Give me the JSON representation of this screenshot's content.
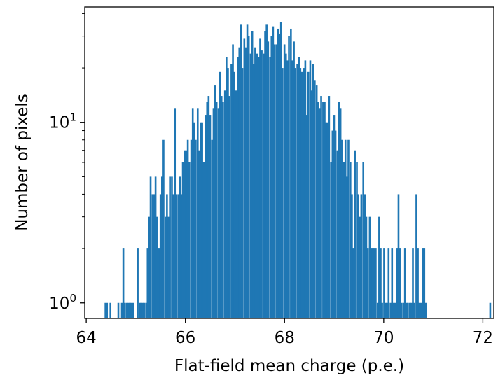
{
  "chart_data": {
    "type": "bar",
    "xlabel": "Flat-field mean charge (p.e.)",
    "ylabel": "Number of pixels",
    "xlim": [
      63.97,
      72.22
    ],
    "ylim": [
      0.82,
      43.5
    ],
    "yscale": "log",
    "grid": false,
    "color": "#1f77b4",
    "x_ticks": [
      64,
      66,
      68,
      70,
      72
    ],
    "x_tick_labels": [
      "64",
      "66",
      "68",
      "70",
      "72"
    ],
    "y_major_ticks": [
      1,
      10
    ],
    "y_tick_labels": [
      {
        "base": "10",
        "exp": "0"
      },
      {
        "base": "10",
        "exp": "1"
      }
    ],
    "y_minor_ticks": [
      2,
      3,
      4,
      5,
      6,
      7,
      8,
      9,
      20,
      30,
      40
    ],
    "bin_width": 0.0325,
    "bins": [
      [
        64.37,
        1
      ],
      [
        64.4,
        1
      ],
      [
        64.47,
        1
      ],
      [
        64.63,
        1
      ],
      [
        64.7,
        1
      ],
      [
        64.73,
        2
      ],
      [
        64.76,
        1
      ],
      [
        64.8,
        1
      ],
      [
        64.83,
        1
      ],
      [
        64.86,
        1
      ],
      [
        64.89,
        1
      ],
      [
        64.93,
        1
      ],
      [
        65.02,
        2
      ],
      [
        65.06,
        1
      ],
      [
        65.09,
        1
      ],
      [
        65.12,
        1
      ],
      [
        65.15,
        1
      ],
      [
        65.19,
        1
      ],
      [
        65.22,
        2
      ],
      [
        65.25,
        3
      ],
      [
        65.28,
        5
      ],
      [
        65.32,
        4
      ],
      [
        65.35,
        4
      ],
      [
        65.38,
        5
      ],
      [
        65.41,
        3
      ],
      [
        65.45,
        2
      ],
      [
        65.48,
        4
      ],
      [
        65.51,
        5
      ],
      [
        65.54,
        8
      ],
      [
        65.58,
        3
      ],
      [
        65.61,
        4
      ],
      [
        65.64,
        3
      ],
      [
        65.67,
        5
      ],
      [
        65.71,
        5
      ],
      [
        65.74,
        4
      ],
      [
        65.77,
        12
      ],
      [
        65.8,
        4
      ],
      [
        65.84,
        4
      ],
      [
        65.87,
        5
      ],
      [
        65.9,
        4
      ],
      [
        65.93,
        6
      ],
      [
        65.97,
        7
      ],
      [
        66.0,
        7
      ],
      [
        66.03,
        8
      ],
      [
        66.06,
        6
      ],
      [
        66.1,
        8
      ],
      [
        66.13,
        12
      ],
      [
        66.16,
        10
      ],
      [
        66.19,
        8
      ],
      [
        66.23,
        12
      ],
      [
        66.26,
        7
      ],
      [
        66.29,
        10
      ],
      [
        66.32,
        10
      ],
      [
        66.35,
        6
      ],
      [
        66.39,
        11
      ],
      [
        66.42,
        13
      ],
      [
        66.45,
        14
      ],
      [
        66.48,
        11
      ],
      [
        66.52,
        8
      ],
      [
        66.55,
        12
      ],
      [
        66.58,
        16
      ],
      [
        66.61,
        13
      ],
      [
        66.65,
        12
      ],
      [
        66.68,
        19
      ],
      [
        66.71,
        14
      ],
      [
        66.74,
        13
      ],
      [
        66.78,
        15
      ],
      [
        66.81,
        23
      ],
      [
        66.84,
        20
      ],
      [
        66.87,
        14
      ],
      [
        66.91,
        21
      ],
      [
        66.94,
        27
      ],
      [
        66.97,
        19
      ],
      [
        67.0,
        15
      ],
      [
        67.04,
        23
      ],
      [
        67.07,
        26
      ],
      [
        67.1,
        35
      ],
      [
        67.13,
        20
      ],
      [
        67.17,
        29
      ],
      [
        67.2,
        26
      ],
      [
        67.23,
        35
      ],
      [
        67.26,
        30
      ],
      [
        67.3,
        24
      ],
      [
        67.33,
        32
      ],
      [
        67.36,
        21
      ],
      [
        67.39,
        26
      ],
      [
        67.43,
        24
      ],
      [
        67.46,
        23
      ],
      [
        67.49,
        29
      ],
      [
        67.52,
        25
      ],
      [
        67.56,
        24
      ],
      [
        67.59,
        32
      ],
      [
        67.62,
        35
      ],
      [
        67.65,
        28
      ],
      [
        67.69,
        23
      ],
      [
        67.72,
        30
      ],
      [
        67.75,
        34
      ],
      [
        67.78,
        27
      ],
      [
        67.82,
        27
      ],
      [
        67.85,
        33
      ],
      [
        67.88,
        31
      ],
      [
        67.91,
        36
      ],
      [
        67.94,
        20
      ],
      [
        67.98,
        27
      ],
      [
        68.01,
        24
      ],
      [
        68.04,
        22
      ],
      [
        68.07,
        30
      ],
      [
        68.11,
        33
      ],
      [
        68.14,
        22
      ],
      [
        68.17,
        28
      ],
      [
        68.2,
        20
      ],
      [
        68.24,
        21
      ],
      [
        68.27,
        23
      ],
      [
        68.3,
        20
      ],
      [
        68.33,
        19
      ],
      [
        68.37,
        20
      ],
      [
        68.4,
        22
      ],
      [
        68.43,
        11
      ],
      [
        68.46,
        19
      ],
      [
        68.5,
        22
      ],
      [
        68.53,
        15
      ],
      [
        68.56,
        21
      ],
      [
        68.59,
        17
      ],
      [
        68.63,
        16
      ],
      [
        68.66,
        13
      ],
      [
        68.69,
        12
      ],
      [
        68.72,
        14
      ],
      [
        68.76,
        13
      ],
      [
        68.79,
        13
      ],
      [
        68.82,
        10
      ],
      [
        68.85,
        10
      ],
      [
        68.88,
        14
      ],
      [
        68.92,
        6
      ],
      [
        68.95,
        9
      ],
      [
        68.98,
        11
      ],
      [
        69.01,
        9
      ],
      [
        69.05,
        7
      ],
      [
        69.08,
        13
      ],
      [
        69.11,
        12
      ],
      [
        69.14,
        8
      ],
      [
        69.18,
        6
      ],
      [
        69.21,
        8
      ],
      [
        69.24,
        5
      ],
      [
        69.27,
        8
      ],
      [
        69.31,
        6
      ],
      [
        69.34,
        4
      ],
      [
        69.37,
        2
      ],
      [
        69.4,
        7
      ],
      [
        69.44,
        6
      ],
      [
        69.47,
        4
      ],
      [
        69.5,
        3
      ],
      [
        69.53,
        4
      ],
      [
        69.57,
        6
      ],
      [
        69.6,
        4
      ],
      [
        69.63,
        3
      ],
      [
        69.66,
        2
      ],
      [
        69.7,
        3
      ],
      [
        69.73,
        2
      ],
      [
        69.76,
        2
      ],
      [
        69.79,
        2
      ],
      [
        69.82,
        2
      ],
      [
        69.86,
        1
      ],
      [
        69.89,
        3
      ],
      [
        69.92,
        2
      ],
      [
        69.95,
        1
      ],
      [
        69.99,
        2
      ],
      [
        70.02,
        1
      ],
      [
        70.05,
        1
      ],
      [
        70.08,
        2
      ],
      [
        70.12,
        1
      ],
      [
        70.15,
        2
      ],
      [
        70.18,
        1
      ],
      [
        70.21,
        1
      ],
      [
        70.25,
        2
      ],
      [
        70.28,
        4
      ],
      [
        70.31,
        2
      ],
      [
        70.34,
        1
      ],
      [
        70.38,
        1
      ],
      [
        70.41,
        2
      ],
      [
        70.44,
        1
      ],
      [
        70.47,
        1
      ],
      [
        70.51,
        1
      ],
      [
        70.54,
        1
      ],
      [
        70.57,
        2
      ],
      [
        70.6,
        1
      ],
      [
        70.64,
        4
      ],
      [
        70.67,
        2
      ],
      [
        70.7,
        1
      ],
      [
        70.73,
        1
      ],
      [
        70.77,
        2
      ],
      [
        70.8,
        2
      ],
      [
        70.83,
        1
      ],
      [
        72.13,
        1
      ]
    ]
  }
}
